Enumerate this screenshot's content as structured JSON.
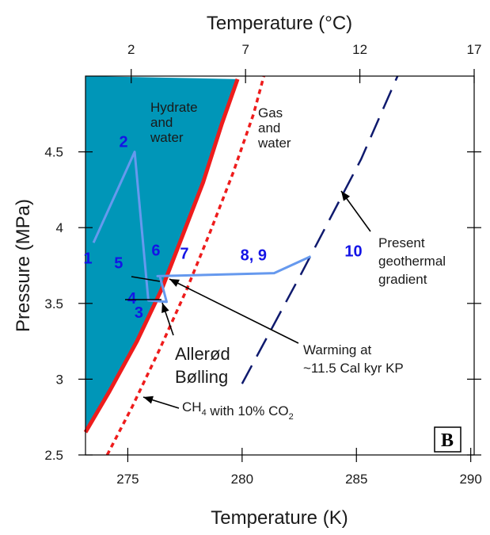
{
  "chart_data": {
    "type": "line",
    "title": "",
    "top_axis": {
      "label": "Temperature (°C)",
      "ticks": [
        2,
        7,
        12,
        17
      ]
    },
    "xlabel": "Temperature (K)",
    "ylabel": "Pressure (MPa)",
    "xlim": [
      273.15,
      290.15
    ],
    "ylim": [
      2.5,
      5.0
    ],
    "xticks": [
      275,
      280,
      285,
      290
    ],
    "yticks": [
      2.5,
      3,
      3.5,
      4,
      4.5
    ],
    "xtick_labels": [
      "275",
      "280",
      "285",
      "290"
    ],
    "ytick_labels": [
      "2.5",
      "3",
      "3.5",
      "4",
      "4.5"
    ],
    "region_color": "#0096b8",
    "series": [
      {
        "name": "",
        "style": "solid",
        "color": "#ee1c1c",
        "x": [
          273.15,
          274.2,
          275.4,
          276.5,
          277.4,
          278.3,
          279.1,
          279.8
        ],
        "y": [
          2.65,
          2.92,
          3.25,
          3.6,
          3.95,
          4.3,
          4.68,
          4.98
        ]
      },
      {
        "name": "CH4 with 10% CO2",
        "style": "dotted",
        "color": "#ee1c1c",
        "x": [
          274.1,
          275.2,
          276.4,
          277.6,
          278.6,
          279.6,
          280.5,
          280.95
        ],
        "y": [
          2.5,
          2.82,
          3.2,
          3.6,
          3.97,
          4.36,
          4.75,
          5.0
        ]
      },
      {
        "name": "Present geothermal gradient",
        "style": "dashed",
        "color": "#0f1a6e",
        "x": [
          280.0,
          282.6,
          285.2,
          286.8
        ],
        "y": [
          2.97,
          3.7,
          4.45,
          5.0
        ]
      },
      {
        "name": "",
        "style": "solid",
        "color": "#6699ee",
        "x": [
          273.5,
          275.3,
          275.9,
          276.7,
          276.4,
          276.3,
          281.4,
          283.0
        ],
        "y": [
          3.9,
          4.5,
          3.52,
          3.51,
          3.68,
          3.68,
          3.7,
          3.81
        ]
      }
    ],
    "points": [
      {
        "label": "1",
        "x": 273.5,
        "y": 3.9
      },
      {
        "label": "2",
        "x": 275.3,
        "y": 4.5
      },
      {
        "label": "3",
        "x": 275.9,
        "y": 3.52
      },
      {
        "label": "4",
        "x": 276.7,
        "y": 3.51
      },
      {
        "label": "5",
        "x": 276.4,
        "y": 3.68
      },
      {
        "label": "6",
        "x": 276.3,
        "y": 3.68
      },
      {
        "label": "7",
        "x": 276.3,
        "y": 3.68
      },
      {
        "label": "8, 9",
        "x": 281.4,
        "y": 3.7
      },
      {
        "label": "10",
        "x": 283.0,
        "y": 3.81
      }
    ],
    "annotations": {
      "hydrate_region": "Hydrate\nand\nwater",
      "gas_region": "Gas\nand\nwater",
      "geotherm": "Present\ngeothermal\ngradient",
      "warming": "Warming at\n~11.5 Cal kyr KP",
      "events": "Allerød\nBølling",
      "ch4_label": "CH",
      "ch4_sub": "4",
      "ch4_mid": " with 10% CO",
      "ch4_sub2": "2",
      "panel": "B"
    },
    "grid": false,
    "legend": "none"
  }
}
